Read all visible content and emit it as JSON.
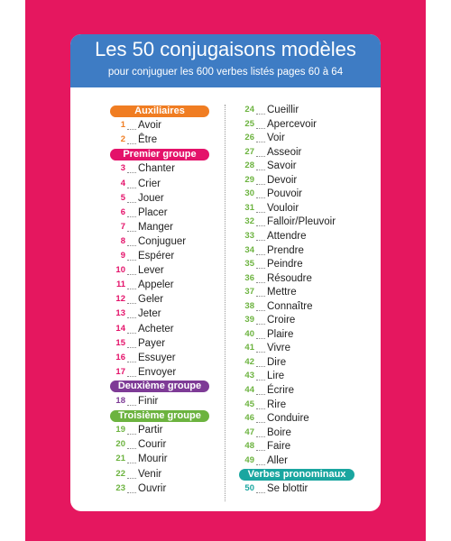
{
  "header": {
    "title": "Les 50 conjugaisons modèles",
    "subtitle": "pour conjuguer les 600 verbes listés pages 60 à 64"
  },
  "sections": [
    {
      "title": "Auxiliaires",
      "color": "#f07d22",
      "verbs": [
        {
          "number": 1,
          "name": "Avoir"
        },
        {
          "number": 2,
          "name": "Être"
        }
      ]
    },
    {
      "title": "Premier groupe",
      "color": "#e4126a",
      "verbs": [
        {
          "number": 3,
          "name": "Chanter"
        },
        {
          "number": 4,
          "name": "Crier"
        },
        {
          "number": 5,
          "name": "Jouer"
        },
        {
          "number": 6,
          "name": "Placer"
        },
        {
          "number": 7,
          "name": "Manger"
        },
        {
          "number": 8,
          "name": "Conjuguer"
        },
        {
          "number": 9,
          "name": "Espérer"
        },
        {
          "number": 10,
          "name": "Lever"
        },
        {
          "number": 11,
          "name": "Appeler"
        },
        {
          "number": 12,
          "name": "Geler"
        },
        {
          "number": 13,
          "name": "Jeter"
        },
        {
          "number": 14,
          "name": "Acheter"
        },
        {
          "number": 15,
          "name": "Payer"
        },
        {
          "number": 16,
          "name": "Essuyer"
        },
        {
          "number": 17,
          "name": "Envoyer"
        }
      ]
    },
    {
      "title": "Deuxième groupe",
      "color": "#7e3b96",
      "verbs": [
        {
          "number": 18,
          "name": "Finir"
        }
      ]
    },
    {
      "title": "Troisième groupe",
      "color": "#6cb33f",
      "verbs": [
        {
          "number": 19,
          "name": "Partir"
        },
        {
          "number": 20,
          "name": "Courir"
        },
        {
          "number": 21,
          "name": "Mourir"
        },
        {
          "number": 22,
          "name": "Venir"
        },
        {
          "number": 23,
          "name": "Ouvrir"
        },
        {
          "number": 24,
          "name": "Cueillir"
        },
        {
          "number": 25,
          "name": "Apercevoir"
        },
        {
          "number": 26,
          "name": "Voir"
        },
        {
          "number": 27,
          "name": "Asseoir"
        },
        {
          "number": 28,
          "name": "Savoir"
        },
        {
          "number": 29,
          "name": "Devoir"
        },
        {
          "number": 30,
          "name": "Pouvoir"
        },
        {
          "number": 31,
          "name": "Vouloir"
        },
        {
          "number": 32,
          "name": "Falloir/Pleuvoir"
        },
        {
          "number": 33,
          "name": "Attendre"
        },
        {
          "number": 34,
          "name": "Prendre"
        },
        {
          "number": 35,
          "name": "Peindre"
        },
        {
          "number": 36,
          "name": "Résoudre"
        },
        {
          "number": 37,
          "name": "Mettre"
        },
        {
          "number": 38,
          "name": "Connaître"
        },
        {
          "number": 39,
          "name": "Croire"
        },
        {
          "number": 40,
          "name": "Plaire"
        },
        {
          "number": 41,
          "name": "Vivre"
        },
        {
          "number": 42,
          "name": "Dire"
        },
        {
          "number": 43,
          "name": "Lire"
        },
        {
          "number": 44,
          "name": "Écrire"
        },
        {
          "number": 45,
          "name": "Rire"
        },
        {
          "number": 46,
          "name": "Conduire"
        },
        {
          "number": 47,
          "name": "Boire"
        },
        {
          "number": 48,
          "name": "Faire"
        },
        {
          "number": 49,
          "name": "Aller"
        }
      ]
    },
    {
      "title": "Verbes pronominaux",
      "color": "#1aa6a0",
      "verbs": [
        {
          "number": 50,
          "name": "Se blottir"
        }
      ]
    }
  ]
}
